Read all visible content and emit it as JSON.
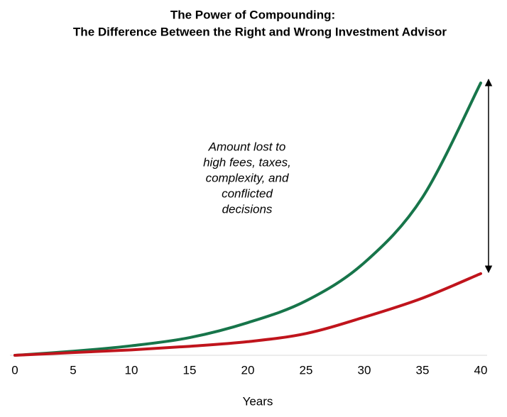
{
  "chart_data": {
    "type": "line",
    "title": "The Power of Compounding:",
    "subtitle": "The Difference Between the Right and Wrong Investment Advisor",
    "x": [
      0,
      5,
      10,
      15,
      20,
      25,
      30,
      35,
      40
    ],
    "series": [
      {
        "color": "#17754a",
        "values": [
          0,
          1.5,
          3.5,
          6.5,
          12,
          20,
          34,
          58,
          100
        ]
      },
      {
        "color": "#c0141c",
        "values": [
          0,
          1,
          2,
          3.3,
          5,
          8,
          14,
          21,
          30
        ]
      }
    ],
    "xlim": [
      0,
      40
    ],
    "xticks": [
      0,
      5,
      10,
      15,
      20,
      25,
      30,
      35,
      40
    ],
    "ylim": [
      0,
      100
    ],
    "xlabel": "Years",
    "annotation": [
      "Amount lost to",
      "high fees, taxes,",
      "complexity, and",
      "conflicted",
      "decisions"
    ]
  }
}
